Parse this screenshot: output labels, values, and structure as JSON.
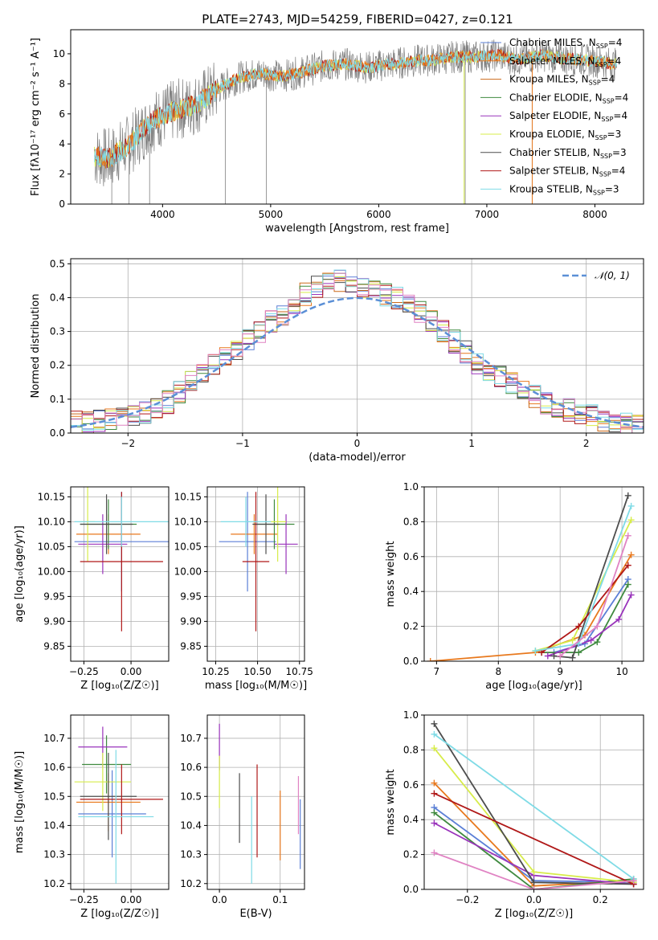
{
  "figure": {
    "title": "PLATE=2743, MJD=54259, FIBERID=0427, z=0.121"
  },
  "colors": {
    "data": "#808080",
    "Chabrier MILES": "#5b7fd6",
    "Salpeter MILES": "#e8791e",
    "Kroupa MILES": "#cc6a1a",
    "Chabrier ELODIE": "#3f8a3f",
    "Salpeter ELODIE": "#9933bb",
    "Kroupa ELODIE": "#d7ec4a",
    "Chabrier STELIB": "#4d4d4d",
    "Salpeter STELIB": "#b01818",
    "Kroupa STELIB": "#7fdbe6",
    "pink": "#e083c3",
    "gaussian": "#5b8fd6"
  },
  "chart_data": [
    {
      "type": "line",
      "title": "PLATE=2743, MJD=54259, FIBERID=0427, z=0.121",
      "xlabel": "wavelength [Angstrom, rest frame]",
      "ylabel": "Flux [fλ10⁻¹⁷ erg cm⁻² s⁻¹ A⁻¹]",
      "xlim": [
        3150,
        8450
      ],
      "ylim": [
        0,
        11.6
      ],
      "xticks": [
        4000,
        5000,
        6000,
        7000,
        8000
      ],
      "yticks": [
        0,
        2,
        4,
        6,
        8,
        10
      ],
      "legend": [
        "Chabrier MILES, N_SSP=4",
        "Salpeter MILES, N_SSP=4",
        "Kroupa MILES, N_SSP=4",
        "Chabrier ELODIE, N_SSP=4",
        "Salpeter ELODIE, N_SSP=4",
        "Kroupa ELODIE, N_SSP=3",
        "Chabrier STELIB, N_SSP=3",
        "Salpeter STELIB, N_SSP=4",
        "Kroupa STELIB, N_SSP=3"
      ],
      "legend_placement": "right",
      "continuum_x": [
        3370,
        3500,
        3700,
        3900,
        4100,
        4300,
        4500,
        4700,
        4900,
        5100,
        5300,
        5500,
        5700,
        5900,
        6100,
        6300,
        6500,
        6700,
        6900,
        7100,
        7300,
        7500,
        7700,
        7900,
        8100,
        8200
      ],
      "continuum_y": [
        3.2,
        3.0,
        4.0,
        5.5,
        6.2,
        6.6,
        7.6,
        8.4,
        8.7,
        8.5,
        8.8,
        9.2,
        9.3,
        9.1,
        9.3,
        9.5,
        9.6,
        9.8,
        9.8,
        9.9,
        9.6,
        9.9,
        9.7,
        9.6,
        9.4,
        9.3
      ]
    },
    {
      "type": "bar",
      "xlabel": "(data-model)/error",
      "ylabel": "Normed distribution",
      "xlim": [
        -2.5,
        2.5
      ],
      "ylim": [
        0,
        0.515
      ],
      "xticks": [
        -2,
        -1,
        0,
        1,
        2
      ],
      "yticks": [
        0.0,
        0.1,
        0.2,
        0.3,
        0.4,
        0.5
      ],
      "bin_edges_start": -2.5,
      "bin_width": 0.1,
      "base_hist": [
        0.03,
        0.032,
        0.035,
        0.04,
        0.045,
        0.05,
        0.06,
        0.07,
        0.09,
        0.12,
        0.15,
        0.17,
        0.2,
        0.22,
        0.25,
        0.28,
        0.3,
        0.33,
        0.35,
        0.38,
        0.41,
        0.43,
        0.44,
        0.45,
        0.44,
        0.43,
        0.42,
        0.41,
        0.4,
        0.38,
        0.36,
        0.33,
        0.3,
        0.27,
        0.24,
        0.21,
        0.19,
        0.17,
        0.15,
        0.13,
        0.11,
        0.09,
        0.08,
        0.07,
        0.06,
        0.05,
        0.04,
        0.035,
        0.03,
        0.025
      ],
      "legend": [
        "𝒩(0, 1)"
      ],
      "legend_placement": "top-right"
    },
    {
      "type": "scatter",
      "xlabel": "Z [log₁₀(Z/Z☉)]",
      "ylabel": "age  [log₁₀(age/yr)]",
      "xlim": [
        -0.32,
        0.2
      ],
      "ylim": [
        9.82,
        10.17
      ],
      "xticks": [
        -0.25,
        0.0
      ],
      "yticks": [
        9.85,
        9.9,
        9.95,
        10.0,
        10.05,
        10.1,
        10.15
      ],
      "points": [
        {
          "series": "Chabrier MILES",
          "x": -0.05,
          "y": 10.06,
          "xerr": 0.25,
          "yerr": 0.1
        },
        {
          "series": "Salpeter MILES",
          "x": -0.12,
          "y": 10.075,
          "xerr": 0.17,
          "yerr": 0.04
        },
        {
          "series": "Chabrier ELODIE",
          "x": -0.12,
          "y": 10.095,
          "xerr": 0.15,
          "yerr": 0.05
        },
        {
          "series": "Salpeter ELODIE",
          "x": -0.15,
          "y": 10.055,
          "xerr": 0.13,
          "yerr": 0.06
        },
        {
          "series": "Kroupa ELODIE",
          "x": -0.23,
          "y": 10.1,
          "xerr": 0.04,
          "yerr": 0.08
        },
        {
          "series": "Chabrier STELIB",
          "x": -0.13,
          "y": 10.095,
          "xerr": 0.14,
          "yerr": 0.06
        },
        {
          "series": "Salpeter STELIB",
          "x": -0.05,
          "y": 10.02,
          "xerr": 0.22,
          "yerr": 0.14
        },
        {
          "series": "Kroupa STELIB",
          "x": -0.05,
          "y": 10.1,
          "xerr": 0.25,
          "yerr": 0.05
        }
      ]
    },
    {
      "type": "scatter",
      "xlabel": "mass [log₁₀(M/M☉)]",
      "ylabel": "",
      "xlim": [
        10.2,
        10.78
      ],
      "ylim": [
        9.82,
        10.17
      ],
      "xticks": [
        10.25,
        10.5,
        10.75
      ],
      "yticks": [
        9.85,
        9.9,
        9.95,
        10.0,
        10.05,
        10.1,
        10.15
      ],
      "points": [
        {
          "series": "Chabrier MILES",
          "x": 10.44,
          "y": 10.06,
          "xerr": 0.17,
          "yerr": 0.1
        },
        {
          "series": "Salpeter MILES",
          "x": 10.48,
          "y": 10.075,
          "xerr": 0.14,
          "yerr": 0.04
        },
        {
          "series": "Chabrier ELODIE",
          "x": 10.6,
          "y": 10.095,
          "xerr": 0.12,
          "yerr": 0.05
        },
        {
          "series": "Salpeter ELODIE",
          "x": 10.67,
          "y": 10.055,
          "xerr": 0.07,
          "yerr": 0.06
        },
        {
          "series": "Kroupa ELODIE",
          "x": 10.62,
          "y": 10.1,
          "xerr": 0.05,
          "yerr": 0.08
        },
        {
          "series": "Chabrier STELIB",
          "x": 10.55,
          "y": 10.095,
          "xerr": 0.08,
          "yerr": 0.06
        },
        {
          "series": "Salpeter STELIB",
          "x": 10.49,
          "y": 10.02,
          "xerr": 0.08,
          "yerr": 0.14
        },
        {
          "series": "Kroupa STELIB",
          "x": 10.43,
          "y": 10.1,
          "xerr": 0.15,
          "yerr": 0.05
        }
      ]
    },
    {
      "type": "line",
      "xlabel": "age  [log₁₀(age/yr)]",
      "ylabel": "mass weight",
      "xlim": [
        6.8,
        10.35
      ],
      "ylim": [
        0,
        1.0
      ],
      "xticks": [
        7,
        8,
        9,
        10
      ],
      "yticks": [
        0.0,
        0.2,
        0.4,
        0.6,
        0.8,
        1.0
      ],
      "series": [
        {
          "series": "Chabrier MILES",
          "x": [
            8.9,
            9.4,
            10.1
          ],
          "y": [
            0.05,
            0.1,
            0.47
          ]
        },
        {
          "series": "Salpeter MILES",
          "x": [
            6.9,
            8.6,
            9.4,
            10.15
          ],
          "y": [
            0.0,
            0.05,
            0.15,
            0.61
          ]
        },
        {
          "series": "Chabrier ELODIE",
          "x": [
            8.7,
            9.3,
            9.6,
            10.1
          ],
          "y": [
            0.05,
            0.05,
            0.11,
            0.44
          ]
        },
        {
          "series": "Salpeter ELODIE",
          "x": [
            8.8,
            9.5,
            9.95,
            10.15
          ],
          "y": [
            0.03,
            0.12,
            0.24,
            0.38
          ]
        },
        {
          "series": "Kroupa ELODIE",
          "x": [
            8.6,
            9.2,
            10.15
          ],
          "y": [
            0.06,
            0.12,
            0.81
          ]
        },
        {
          "series": "Chabrier STELIB",
          "x": [
            8.9,
            9.2,
            10.1
          ],
          "y": [
            0.03,
            0.02,
            0.95
          ]
        },
        {
          "series": "Salpeter STELIB",
          "x": [
            8.7,
            9.3,
            10.1
          ],
          "y": [
            0.05,
            0.2,
            0.55
          ]
        },
        {
          "series": "Kroupa STELIB",
          "x": [
            8.6,
            9.3,
            10.15
          ],
          "y": [
            0.06,
            0.1,
            0.89
          ]
        },
        {
          "series": "pink",
          "x": [
            9.0,
            9.6,
            10.1
          ],
          "y": [
            0.03,
            0.2,
            0.72
          ]
        }
      ]
    },
    {
      "type": "scatter",
      "xlabel": "Z [log₁₀(Z/Z☉)]",
      "ylabel": "mass [log₁₀(M/M☉)]",
      "xlim": [
        -0.32,
        0.2
      ],
      "ylim": [
        10.18,
        10.78
      ],
      "xticks": [
        -0.25,
        0.0
      ],
      "yticks": [
        10.2,
        10.3,
        10.4,
        10.5,
        10.6,
        10.7
      ],
      "points": [
        {
          "series": "Chabrier MILES",
          "x": -0.1,
          "y": 10.44,
          "xerr": 0.18,
          "yerr": 0.15
        },
        {
          "series": "Salpeter MILES",
          "x": -0.12,
          "y": 10.48,
          "xerr": 0.17,
          "yerr": 0.1
        },
        {
          "series": "Chabrier ELODIE",
          "x": -0.13,
          "y": 10.61,
          "xerr": 0.13,
          "yerr": 0.1
        },
        {
          "series": "Salpeter ELODIE",
          "x": -0.15,
          "y": 10.67,
          "xerr": 0.13,
          "yerr": 0.07
        },
        {
          "series": "Kroupa ELODIE",
          "x": -0.15,
          "y": 10.55,
          "xerr": 0.15,
          "yerr": 0.1
        },
        {
          "series": "Chabrier STELIB",
          "x": -0.12,
          "y": 10.5,
          "xerr": 0.15,
          "yerr": 0.15
        },
        {
          "series": "Salpeter STELIB",
          "x": -0.05,
          "y": 10.49,
          "xerr": 0.22,
          "yerr": 0.12
        },
        {
          "series": "Kroupa STELIB",
          "x": -0.08,
          "y": 10.43,
          "xerr": 0.2,
          "yerr": 0.23
        }
      ]
    },
    {
      "type": "scatter",
      "xlabel": "E(B-V)",
      "ylabel": "",
      "xlim": [
        -0.02,
        0.14
      ],
      "ylim": [
        10.18,
        10.78
      ],
      "xticks": [
        0.0,
        0.1
      ],
      "yticks": [
        10.2,
        10.3,
        10.4,
        10.5,
        10.6,
        10.7
      ],
      "points": [
        {
          "series": "Salpeter ELODIE",
          "x": 0.0,
          "y": 10.67,
          "yerr": 0.08
        },
        {
          "series": "Kroupa ELODIE",
          "x": 0.0,
          "y": 10.55,
          "yerr": 0.09
        },
        {
          "series": "Chabrier STELIB",
          "x": 0.033,
          "y": 10.46,
          "yerr": 0.12
        },
        {
          "series": "Kroupa STELIB",
          "x": 0.053,
          "y": 10.35,
          "yerr": 0.15
        },
        {
          "series": "Salpeter STELIB",
          "x": 0.062,
          "y": 10.45,
          "yerr": 0.16
        },
        {
          "series": "Salpeter MILES",
          "x": 0.1,
          "y": 10.4,
          "yerr": 0.12
        },
        {
          "series": "pink",
          "x": 0.13,
          "y": 10.47,
          "yerr": 0.1
        },
        {
          "series": "Chabrier MILES",
          "x": 0.133,
          "y": 10.37,
          "yerr": 0.12
        }
      ]
    },
    {
      "type": "line",
      "xlabel": "Z [log₁₀(Z/Z☉)]",
      "ylabel": "mass weight",
      "xlim": [
        -0.33,
        0.33
      ],
      "ylim": [
        0,
        1.0
      ],
      "xticks": [
        -0.2,
        0.0,
        0.2
      ],
      "yticks": [
        0.0,
        0.2,
        0.4,
        0.6,
        0.8,
        1.0
      ],
      "series": [
        {
          "series": "Chabrier MILES",
          "x": [
            -0.3,
            0.0,
            0.3
          ],
          "y": [
            0.47,
            0.05,
            0.04
          ]
        },
        {
          "series": "Salpeter MILES",
          "x": [
            -0.3,
            0.0,
            0.3
          ],
          "y": [
            0.61,
            0.02,
            0.05
          ]
        },
        {
          "series": "Chabrier ELODIE",
          "x": [
            -0.3,
            0.0,
            0.3
          ],
          "y": [
            0.44,
            0.0,
            0.06
          ]
        },
        {
          "series": "Salpeter ELODIE",
          "x": [
            -0.3,
            0.0,
            0.3
          ],
          "y": [
            0.38,
            0.08,
            0.03
          ]
        },
        {
          "series": "Kroupa ELODIE",
          "x": [
            -0.3,
            0.0,
            0.3
          ],
          "y": [
            0.81,
            0.1,
            0.04
          ]
        },
        {
          "series": "Chabrier STELIB",
          "x": [
            -0.3,
            0.0,
            0.3
          ],
          "y": [
            0.95,
            0.04,
            0.03
          ]
        },
        {
          "series": "Salpeter STELIB",
          "x": [
            -0.3,
            0.3
          ],
          "y": [
            0.55,
            0.03
          ]
        },
        {
          "series": "Kroupa STELIB",
          "x": [
            -0.3,
            0.3
          ],
          "y": [
            0.89,
            0.06
          ]
        },
        {
          "series": "pink",
          "x": [
            -0.3,
            0.0,
            0.3
          ],
          "y": [
            0.21,
            0.0,
            0.05
          ]
        }
      ]
    }
  ]
}
